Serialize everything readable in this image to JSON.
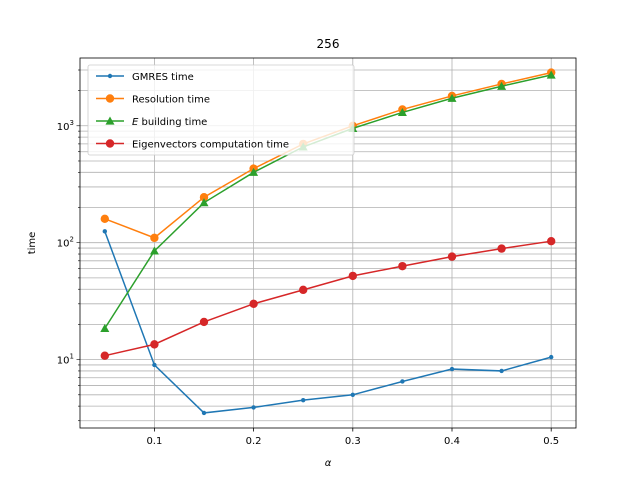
{
  "chart_data": {
    "type": "line",
    "title": "256",
    "xlabel": "α",
    "ylabel": "time",
    "yscale": "log",
    "xlim": [
      0.025,
      0.525
    ],
    "ylim": [
      2.6,
      3800
    ],
    "grid": true,
    "legend_position": "top-left",
    "x": [
      0.05,
      0.1,
      0.15,
      0.2,
      0.25,
      0.3,
      0.35,
      0.4,
      0.45,
      0.5
    ],
    "x_ticks": [
      "0.1",
      "0.2",
      "0.3",
      "0.4",
      "0.5"
    ],
    "x_tick_values": [
      0.1,
      0.2,
      0.3,
      0.4,
      0.5
    ],
    "y_ticks": [
      {
        "label_base": "10",
        "label_exp": "1",
        "value": 10
      },
      {
        "label_base": "10",
        "label_exp": "2",
        "value": 100
      },
      {
        "label_base": "10",
        "label_exp": "3",
        "value": 1000
      }
    ],
    "series": [
      {
        "name": "GMRES time",
        "color": "#1f77b4",
        "marker": "small-circle",
        "values": [
          125,
          9.0,
          3.5,
          3.9,
          4.5,
          5.0,
          6.5,
          8.3,
          8.0,
          10.5
        ]
      },
      {
        "name": "Resolution time",
        "color": "#ff7f0e",
        "marker": "circle",
        "values": [
          160,
          110,
          245,
          430,
          700,
          1000,
          1380,
          1800,
          2280,
          2850
        ]
      },
      {
        "name": "E building time",
        "name_italic": "E",
        "name_rest": " building time",
        "color": "#2ca02c",
        "marker": "triangle",
        "values": [
          18.5,
          85,
          220,
          400,
          660,
          950,
          1300,
          1720,
          2180,
          2720
        ]
      },
      {
        "name": "Eigenvectors computation time",
        "color": "#d62728",
        "marker": "circle",
        "values": [
          10.8,
          13.5,
          21,
          30,
          39.5,
          52,
          63,
          76,
          89,
          103
        ]
      }
    ]
  }
}
